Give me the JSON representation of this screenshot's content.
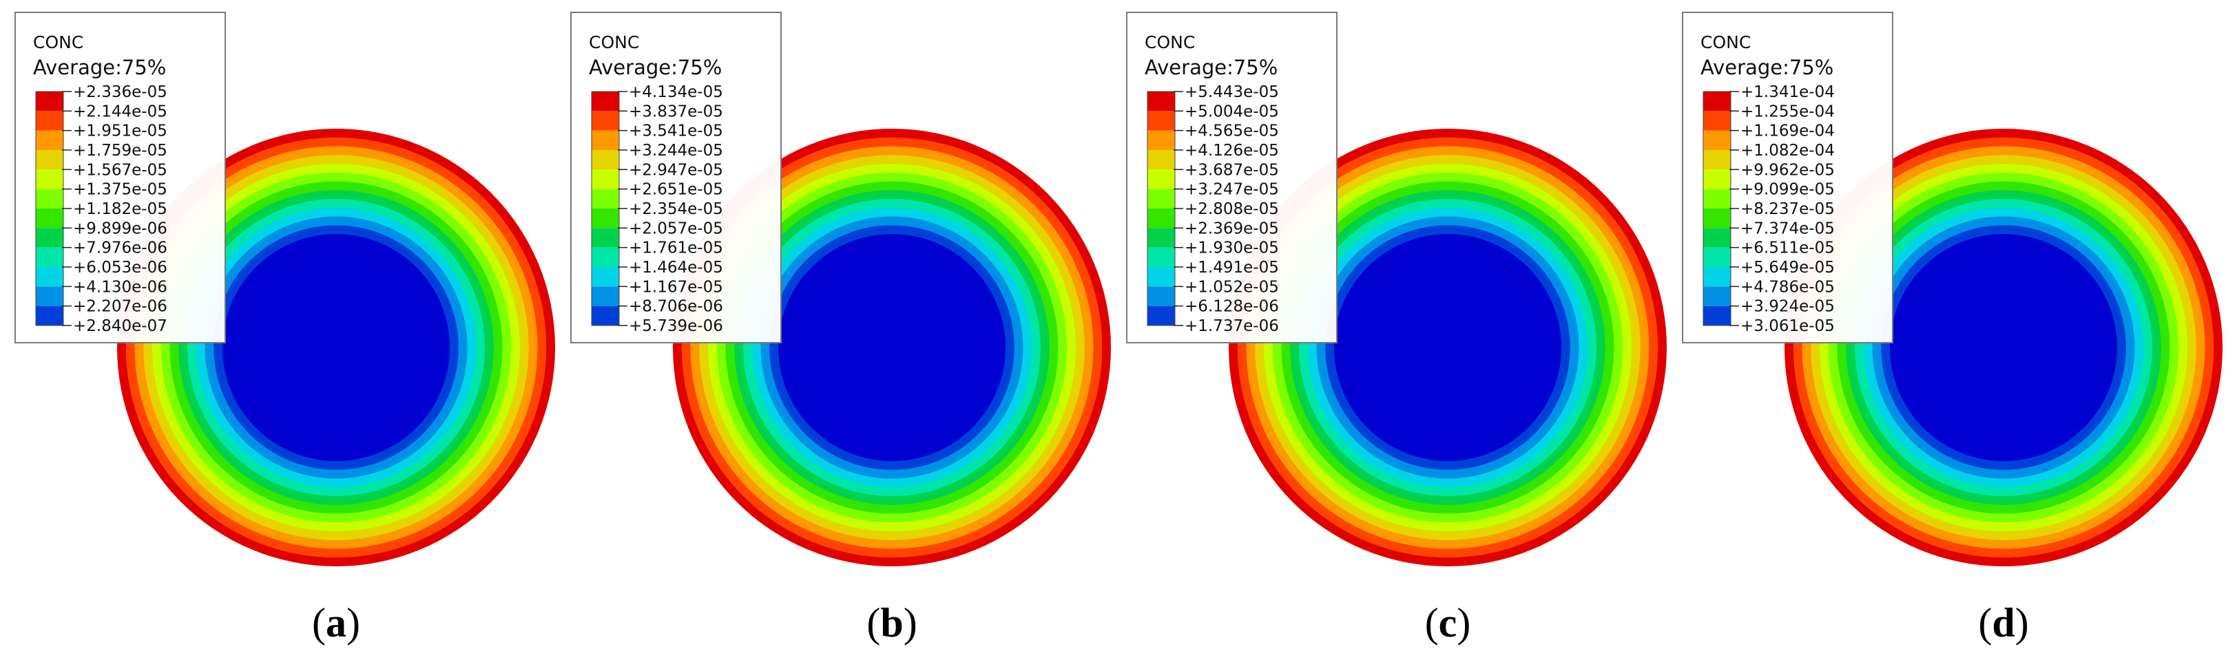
{
  "figure": {
    "panels": [
      {
        "caption": "(a)",
        "caption_letter": "a",
        "legend": {
          "title": "CONC",
          "subtitle": "Average:75%",
          "values": [
            "+2.336e-05",
            "+2.144e-05",
            "+1.951e-05",
            "+1.759e-05",
            "+1.567e-05",
            "+1.375e-05",
            "+1.182e-05",
            "+9.899e-06",
            "+7.976e-06",
            "+6.053e-06",
            "+4.130e-06",
            "+2.207e-06",
            "+2.840e-07"
          ]
        }
      },
      {
        "caption": "(b)",
        "caption_letter": "b",
        "legend": {
          "title": "CONC",
          "subtitle": "Average:75%",
          "values": [
            "+4.134e-05",
            "+3.837e-05",
            "+3.541e-05",
            "+3.244e-05",
            "+2.947e-05",
            "+2.651e-05",
            "+2.354e-05",
            "+2.057e-05",
            "+1.761e-05",
            "+1.464e-05",
            "+1.167e-05",
            "+8.706e-06",
            "+5.739e-06"
          ]
        }
      },
      {
        "caption": "(c)",
        "caption_letter": "c",
        "legend": {
          "title": "CONC",
          "subtitle": "Average:75%",
          "values": [
            "+5.443e-05",
            "+5.004e-05",
            "+4.565e-05",
            "+4.126e-05",
            "+3.687e-05",
            "+3.247e-05",
            "+2.808e-05",
            "+2.369e-05",
            "+1.930e-05",
            "+1.491e-05",
            "+1.052e-05",
            "+6.128e-06",
            "+1.737e-06"
          ]
        }
      },
      {
        "caption": "(d)",
        "caption_letter": "d",
        "legend": {
          "title": "CONC",
          "subtitle": "Average:75%",
          "values": [
            "+1.341e-04",
            "+1.255e-04",
            "+1.169e-04",
            "+1.082e-04",
            "+9.962e-05",
            "+9.099e-05",
            "+8.237e-05",
            "+7.374e-05",
            "+6.511e-05",
            "+5.649e-05",
            "+4.786e-05",
            "+3.924e-05",
            "+3.061e-05"
          ]
        }
      }
    ],
    "colormap": [
      "#e00000",
      "#ff4400",
      "#ff9900",
      "#e5d400",
      "#c8ff00",
      "#7dff00",
      "#33e600",
      "#00d24b",
      "#00e6a8",
      "#00d4e6",
      "#0090e6",
      "#0040d8",
      "#0000d0"
    ]
  }
}
